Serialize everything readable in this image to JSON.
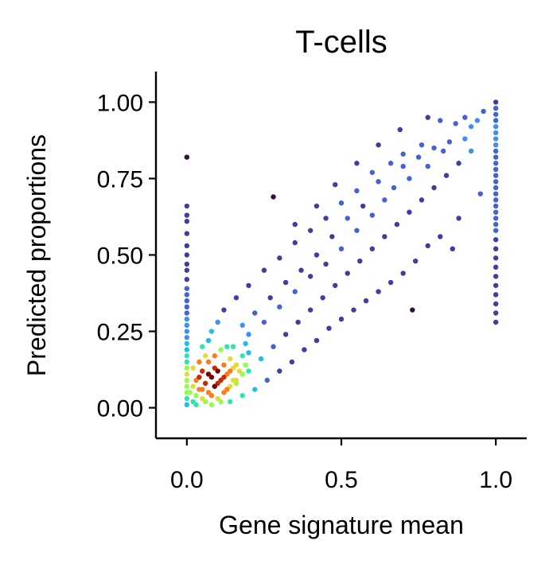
{
  "chart_data": {
    "type": "scatter",
    "title": "T-cells",
    "xlabel": "Gene signature mean",
    "ylabel": "Predicted proportions",
    "xlim": [
      -0.1,
      1.1
    ],
    "ylim": [
      -0.1,
      1.1
    ],
    "xticks": [
      0.0,
      0.5,
      1.0
    ],
    "xtick_labels": [
      "0.0",
      "0.5",
      "1.0"
    ],
    "yticks": [
      0.0,
      0.25,
      0.5,
      0.75,
      1.0
    ],
    "ytick_labels": [
      "0.00",
      "0.25",
      "0.50",
      "0.75",
      "1.00"
    ],
    "grid": false,
    "legend": "none",
    "color_encoding": "point density (turbo colormap)",
    "density_colors": [
      "#30123b",
      "#3e3e9e",
      "#4362d6",
      "#3f8ef9",
      "#1ebfe9",
      "#2ee5ae",
      "#90ff4a",
      "#e2dc38",
      "#fa7d1b",
      "#c92905",
      "#7a0403"
    ],
    "point_groups": [
      {
        "name": "diagonal-sparse",
        "x_range": [
          0.0,
          1.0
        ],
        "y_relation": "y ≈ x",
        "y_spread": 0.1,
        "density": "low"
      },
      {
        "name": "zero-signature-column",
        "x": 0.0,
        "y_range": [
          0.0,
          0.82
        ],
        "density": "high near 0"
      },
      {
        "name": "full-signature-column",
        "x": 1.0,
        "y_range": [
          0.28,
          1.0
        ],
        "density": "high near 0.85–1.0"
      },
      {
        "name": "low-cluster",
        "x_range": [
          0.0,
          0.2
        ],
        "y_range": [
          0.0,
          0.2
        ],
        "density": "very high"
      }
    ],
    "points": [
      [
        0.0,
        0.82
      ],
      [
        0.0,
        0.66
      ],
      [
        0.0,
        0.63
      ],
      [
        0.0,
        0.61
      ],
      [
        0.0,
        0.57
      ],
      [
        0.0,
        0.53
      ],
      [
        0.0,
        0.5
      ],
      [
        0.0,
        0.47
      ],
      [
        0.0,
        0.45
      ],
      [
        0.0,
        0.42
      ],
      [
        0.0,
        0.39
      ],
      [
        0.0,
        0.37
      ],
      [
        0.0,
        0.35
      ],
      [
        0.0,
        0.33
      ],
      [
        0.0,
        0.31
      ],
      [
        0.0,
        0.29
      ],
      [
        0.0,
        0.27
      ],
      [
        0.0,
        0.25
      ],
      [
        0.0,
        0.23
      ],
      [
        0.0,
        0.21
      ],
      [
        0.0,
        0.19
      ],
      [
        0.0,
        0.17
      ],
      [
        0.0,
        0.15
      ],
      [
        0.0,
        0.13
      ],
      [
        0.0,
        0.11
      ],
      [
        0.0,
        0.09
      ],
      [
        0.0,
        0.07
      ],
      [
        0.0,
        0.05
      ],
      [
        0.0,
        0.03
      ],
      [
        0.0,
        0.01
      ],
      [
        1.0,
        1.0
      ],
      [
        1.0,
        0.98
      ],
      [
        1.0,
        0.96
      ],
      [
        1.0,
        0.94
      ],
      [
        1.0,
        0.92
      ],
      [
        1.0,
        0.9
      ],
      [
        1.0,
        0.88
      ],
      [
        1.0,
        0.86
      ],
      [
        1.0,
        0.84
      ],
      [
        1.0,
        0.82
      ],
      [
        1.0,
        0.8
      ],
      [
        1.0,
        0.78
      ],
      [
        1.0,
        0.76
      ],
      [
        1.0,
        0.74
      ],
      [
        1.0,
        0.72
      ],
      [
        1.0,
        0.7
      ],
      [
        1.0,
        0.68
      ],
      [
        1.0,
        0.66
      ],
      [
        1.0,
        0.64
      ],
      [
        1.0,
        0.62
      ],
      [
        1.0,
        0.6
      ],
      [
        1.0,
        0.58
      ],
      [
        1.0,
        0.55
      ],
      [
        1.0,
        0.52
      ],
      [
        1.0,
        0.49
      ],
      [
        1.0,
        0.46
      ],
      [
        1.0,
        0.43
      ],
      [
        1.0,
        0.4
      ],
      [
        1.0,
        0.37
      ],
      [
        1.0,
        0.34
      ],
      [
        1.0,
        0.31
      ],
      [
        1.0,
        0.28
      ],
      [
        0.96,
        0.97
      ],
      [
        0.94,
        0.94
      ],
      [
        0.92,
        0.92
      ],
      [
        0.9,
        0.88
      ],
      [
        0.87,
        0.93
      ],
      [
        0.85,
        0.87
      ],
      [
        0.83,
        0.84
      ],
      [
        0.8,
        0.85
      ],
      [
        0.78,
        0.79
      ],
      [
        0.75,
        0.82
      ],
      [
        0.72,
        0.75
      ],
      [
        0.7,
        0.79
      ],
      [
        0.67,
        0.72
      ],
      [
        0.64,
        0.68
      ],
      [
        0.62,
        0.74
      ],
      [
        0.6,
        0.63
      ],
      [
        0.57,
        0.66
      ],
      [
        0.55,
        0.58
      ],
      [
        0.52,
        0.62
      ],
      [
        0.5,
        0.52
      ],
      [
        0.47,
        0.56
      ],
      [
        0.45,
        0.47
      ],
      [
        0.42,
        0.5
      ],
      [
        0.4,
        0.43
      ],
      [
        0.37,
        0.45
      ],
      [
        0.35,
        0.38
      ],
      [
        0.32,
        0.41
      ],
      [
        0.3,
        0.33
      ],
      [
        0.27,
        0.36
      ],
      [
        0.25,
        0.28
      ],
      [
        0.22,
        0.31
      ],
      [
        0.2,
        0.24
      ],
      [
        0.18,
        0.27
      ],
      [
        0.15,
        0.2
      ],
      [
        0.92,
        0.84
      ],
      [
        0.88,
        0.8
      ],
      [
        0.84,
        0.76
      ],
      [
        0.8,
        0.72
      ],
      [
        0.76,
        0.68
      ],
      [
        0.72,
        0.64
      ],
      [
        0.68,
        0.6
      ],
      [
        0.64,
        0.56
      ],
      [
        0.6,
        0.52
      ],
      [
        0.56,
        0.48
      ],
      [
        0.52,
        0.44
      ],
      [
        0.48,
        0.4
      ],
      [
        0.44,
        0.36
      ],
      [
        0.4,
        0.32
      ],
      [
        0.36,
        0.28
      ],
      [
        0.32,
        0.24
      ],
      [
        0.28,
        0.2
      ],
      [
        0.24,
        0.16
      ],
      [
        0.2,
        0.12
      ],
      [
        0.16,
        0.08
      ],
      [
        0.9,
        0.95
      ],
      [
        0.82,
        0.94
      ],
      [
        0.76,
        0.86
      ],
      [
        0.7,
        0.83
      ],
      [
        0.66,
        0.8
      ],
      [
        0.6,
        0.77
      ],
      [
        0.55,
        0.71
      ],
      [
        0.5,
        0.67
      ],
      [
        0.45,
        0.62
      ],
      [
        0.4,
        0.58
      ],
      [
        0.35,
        0.54
      ],
      [
        0.3,
        0.49
      ],
      [
        0.25,
        0.45
      ],
      [
        0.2,
        0.4
      ],
      [
        0.16,
        0.36
      ],
      [
        0.12,
        0.32
      ],
      [
        0.1,
        0.28
      ],
      [
        0.08,
        0.25
      ],
      [
        0.07,
        0.22
      ],
      [
        0.05,
        0.2
      ],
      [
        0.95,
        0.7
      ],
      [
        0.88,
        0.62
      ],
      [
        0.82,
        0.56
      ],
      [
        0.78,
        0.53
      ],
      [
        0.74,
        0.48
      ],
      [
        0.7,
        0.44
      ],
      [
        0.66,
        0.41
      ],
      [
        0.62,
        0.38
      ],
      [
        0.58,
        0.35
      ],
      [
        0.54,
        0.32
      ],
      [
        0.5,
        0.29
      ],
      [
        0.46,
        0.26
      ],
      [
        0.42,
        0.22
      ],
      [
        0.38,
        0.19
      ],
      [
        0.34,
        0.15
      ],
      [
        0.3,
        0.12
      ],
      [
        0.26,
        0.09
      ],
      [
        0.22,
        0.06
      ],
      [
        0.18,
        0.04
      ],
      [
        0.14,
        0.02
      ],
      [
        0.73,
        0.32
      ],
      [
        0.86,
        0.52
      ],
      [
        0.28,
        0.69
      ],
      [
        0.35,
        0.6
      ],
      [
        0.42,
        0.66
      ],
      [
        0.48,
        0.73
      ],
      [
        0.55,
        0.8
      ],
      [
        0.62,
        0.86
      ],
      [
        0.69,
        0.91
      ],
      [
        0.78,
        0.95
      ],
      [
        0.02,
        0.02
      ],
      [
        0.03,
        0.04
      ],
      [
        0.04,
        0.06
      ],
      [
        0.05,
        0.03
      ],
      [
        0.06,
        0.08
      ],
      [
        0.07,
        0.05
      ],
      [
        0.08,
        0.1
      ],
      [
        0.09,
        0.07
      ],
      [
        0.1,
        0.12
      ],
      [
        0.11,
        0.09
      ],
      [
        0.12,
        0.14
      ],
      [
        0.13,
        0.11
      ],
      [
        0.14,
        0.16
      ],
      [
        0.15,
        0.13
      ],
      [
        0.03,
        0.09
      ],
      [
        0.05,
        0.12
      ],
      [
        0.07,
        0.15
      ],
      [
        0.09,
        0.17
      ],
      [
        0.11,
        0.19
      ],
      [
        0.13,
        0.2
      ],
      [
        0.02,
        0.13
      ],
      [
        0.04,
        0.15
      ],
      [
        0.06,
        0.17
      ],
      [
        0.08,
        0.01
      ],
      [
        0.1,
        0.03
      ],
      [
        0.12,
        0.05
      ],
      [
        0.14,
        0.07
      ],
      [
        0.16,
        0.09
      ],
      [
        0.18,
        0.11
      ],
      [
        0.19,
        0.14
      ],
      [
        0.01,
        0.05
      ],
      [
        0.02,
        0.07
      ],
      [
        0.03,
        0.01
      ],
      [
        0.04,
        0.1
      ],
      [
        0.05,
        0.06
      ],
      [
        0.06,
        0.02
      ],
      [
        0.07,
        0.11
      ],
      [
        0.08,
        0.04
      ],
      [
        0.09,
        0.13
      ],
      [
        0.1,
        0.08
      ],
      [
        0.11,
        0.02
      ],
      [
        0.12,
        0.1
      ],
      [
        0.13,
        0.06
      ],
      [
        0.14,
        0.12
      ],
      [
        0.15,
        0.09
      ],
      [
        0.16,
        0.14
      ],
      [
        0.17,
        0.12
      ],
      [
        0.18,
        0.17
      ],
      [
        0.19,
        0.21
      ],
      [
        0.2,
        0.18
      ]
    ]
  }
}
